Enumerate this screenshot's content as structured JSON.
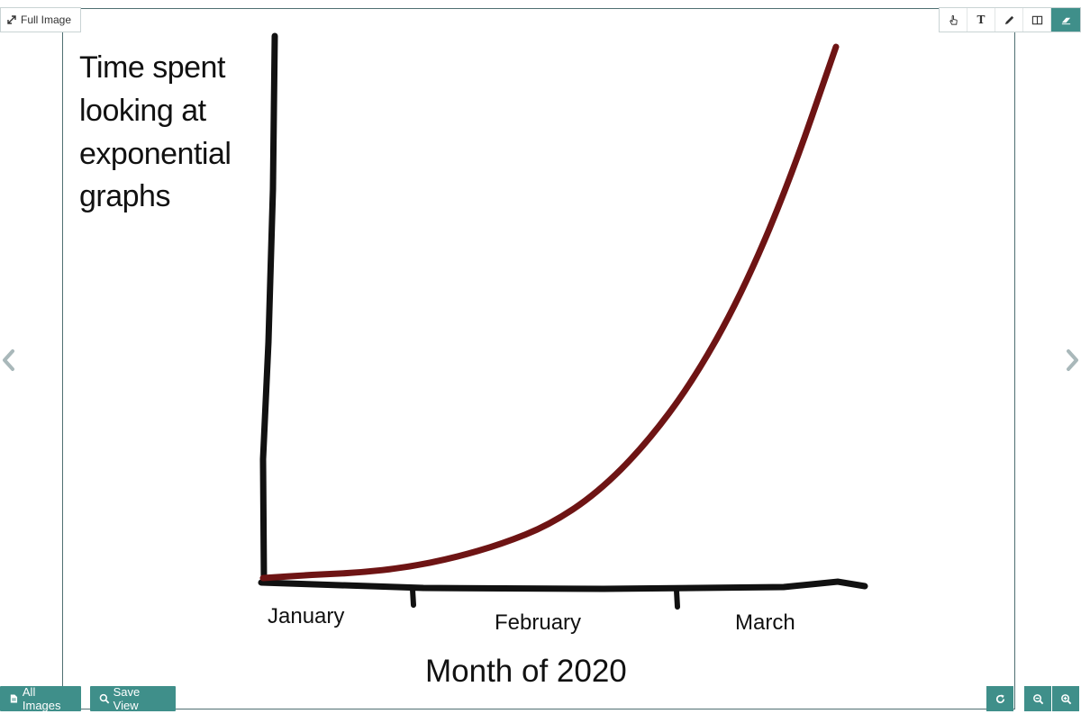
{
  "viewer": {
    "full_image_label": "Full Image",
    "all_images_label": "All Images",
    "save_view_label": "Save View",
    "toolbar_text_tool": "T",
    "accent_color": "#3f8f8a",
    "toolbar_icons": [
      "pointer-hand-icon",
      "text-tool-icon",
      "pencil-icon",
      "split-view-icon",
      "eraser-icon"
    ],
    "nav_icons": [
      "chevron-left-icon",
      "chevron-right-icon"
    ],
    "bottom_right_icons": [
      "rotate-icon",
      "zoom-out-icon",
      "zoom-in-icon"
    ]
  },
  "chart_data": {
    "type": "line",
    "style": "hand-drawn",
    "ylabel_lines": [
      "Time spent",
      "looking at",
      "exponential",
      "graphs"
    ],
    "xlabel": "Month of 2020",
    "categories": [
      "January",
      "February",
      "March"
    ],
    "series": [
      {
        "color": "#6e1414",
        "x": [
          0,
          0.25,
          0.5,
          0.75,
          1.0,
          1.25,
          1.5,
          1.75,
          2.0,
          2.25,
          2.5,
          2.75,
          3.0
        ],
        "y": [
          0,
          0.3,
          0.5,
          1.0,
          1.9,
          3.2,
          5.0,
          8.0,
          12.5,
          18.5,
          26.5,
          37.0,
          50.0
        ]
      }
    ],
    "axis_color": "#111111",
    "grid": false
  }
}
